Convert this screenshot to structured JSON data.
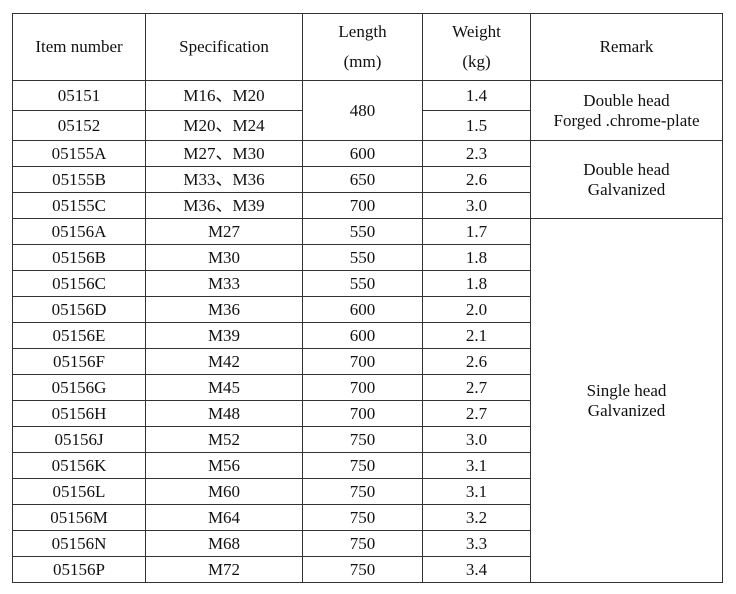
{
  "table": {
    "headers": [
      {
        "line1": "Item number",
        "line2": ""
      },
      {
        "line1": "Specification",
        "line2": ""
      },
      {
        "line1": "Length",
        "line2": "(mm)"
      },
      {
        "line1": "Weight",
        "line2": "(kg)"
      },
      {
        "line1": "Remark",
        "line2": ""
      }
    ],
    "rows": [
      {
        "item": "05151",
        "spec": "M16、M20",
        "length": "480",
        "weight": "1.4"
      },
      {
        "item": "05152",
        "spec": "M20、M24",
        "length": "480",
        "weight": "1.5"
      },
      {
        "item": "05155A",
        "spec": "M27、M30",
        "length": "600",
        "weight": "2.3"
      },
      {
        "item": "05155B",
        "spec": "M33、M36",
        "length": "650",
        "weight": "2.6"
      },
      {
        "item": "05155C",
        "spec": "M36、M39",
        "length": "700",
        "weight": "3.0"
      },
      {
        "item": "05156A",
        "spec": "M27",
        "length": "550",
        "weight": "1.7"
      },
      {
        "item": "05156B",
        "spec": "M30",
        "length": "550",
        "weight": "1.8"
      },
      {
        "item": "05156C",
        "spec": "M33",
        "length": "550",
        "weight": "1.8"
      },
      {
        "item": "05156D",
        "spec": "M36",
        "length": "600",
        "weight": "2.0"
      },
      {
        "item": "05156E",
        "spec": "M39",
        "length": "600",
        "weight": "2.1"
      },
      {
        "item": "05156F",
        "spec": "M42",
        "length": "700",
        "weight": "2.6"
      },
      {
        "item": "05156G",
        "spec": "M45",
        "length": "700",
        "weight": "2.7"
      },
      {
        "item": "05156H",
        "spec": "M48",
        "length": "700",
        "weight": "2.7"
      },
      {
        "item": "05156J",
        "spec": "M52",
        "length": "750",
        "weight": "3.0"
      },
      {
        "item": "05156K",
        "spec": "M56",
        "length": "750",
        "weight": "3.1"
      },
      {
        "item": "05156L",
        "spec": "M60",
        "length": "750",
        "weight": "3.1"
      },
      {
        "item": "05156M",
        "spec": "M64",
        "length": "750",
        "weight": "3.2"
      },
      {
        "item": "05156N",
        "spec": "M68",
        "length": "750",
        "weight": "3.3"
      },
      {
        "item": "05156P",
        "spec": "M72",
        "length": "750",
        "weight": "3.4"
      }
    ],
    "remarks": [
      {
        "line1": "Double head",
        "line2": "Forged .chrome-plate"
      },
      {
        "line1": "Double head",
        "line2": "Galvanized"
      },
      {
        "line1": "Single head",
        "line2": "Galvanized"
      }
    ]
  }
}
